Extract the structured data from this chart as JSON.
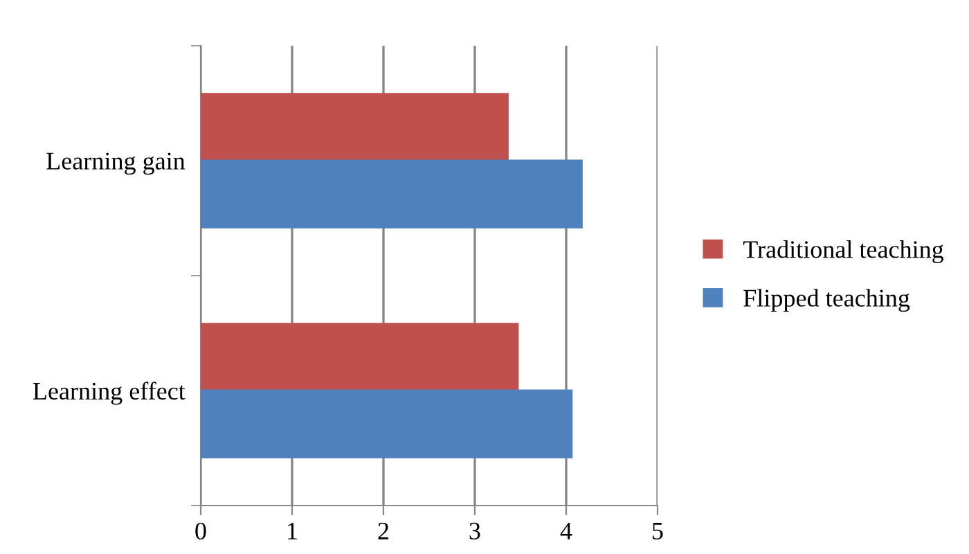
{
  "chart_data": {
    "type": "bar",
    "orientation": "horizontal",
    "categories": [
      "Learning gain",
      "Learning effect"
    ],
    "series": [
      {
        "name": "Traditional teaching",
        "color": "#c0504d",
        "values": [
          3.36,
          3.47
        ]
      },
      {
        "name": "Flipped teaching",
        "color": "#4f81bd",
        "values": [
          4.17,
          4.06
        ]
      }
    ],
    "xlim": [
      0,
      5
    ],
    "xticks": [
      0,
      1,
      2,
      3,
      4,
      5
    ],
    "grid": "x",
    "legend": "right"
  }
}
